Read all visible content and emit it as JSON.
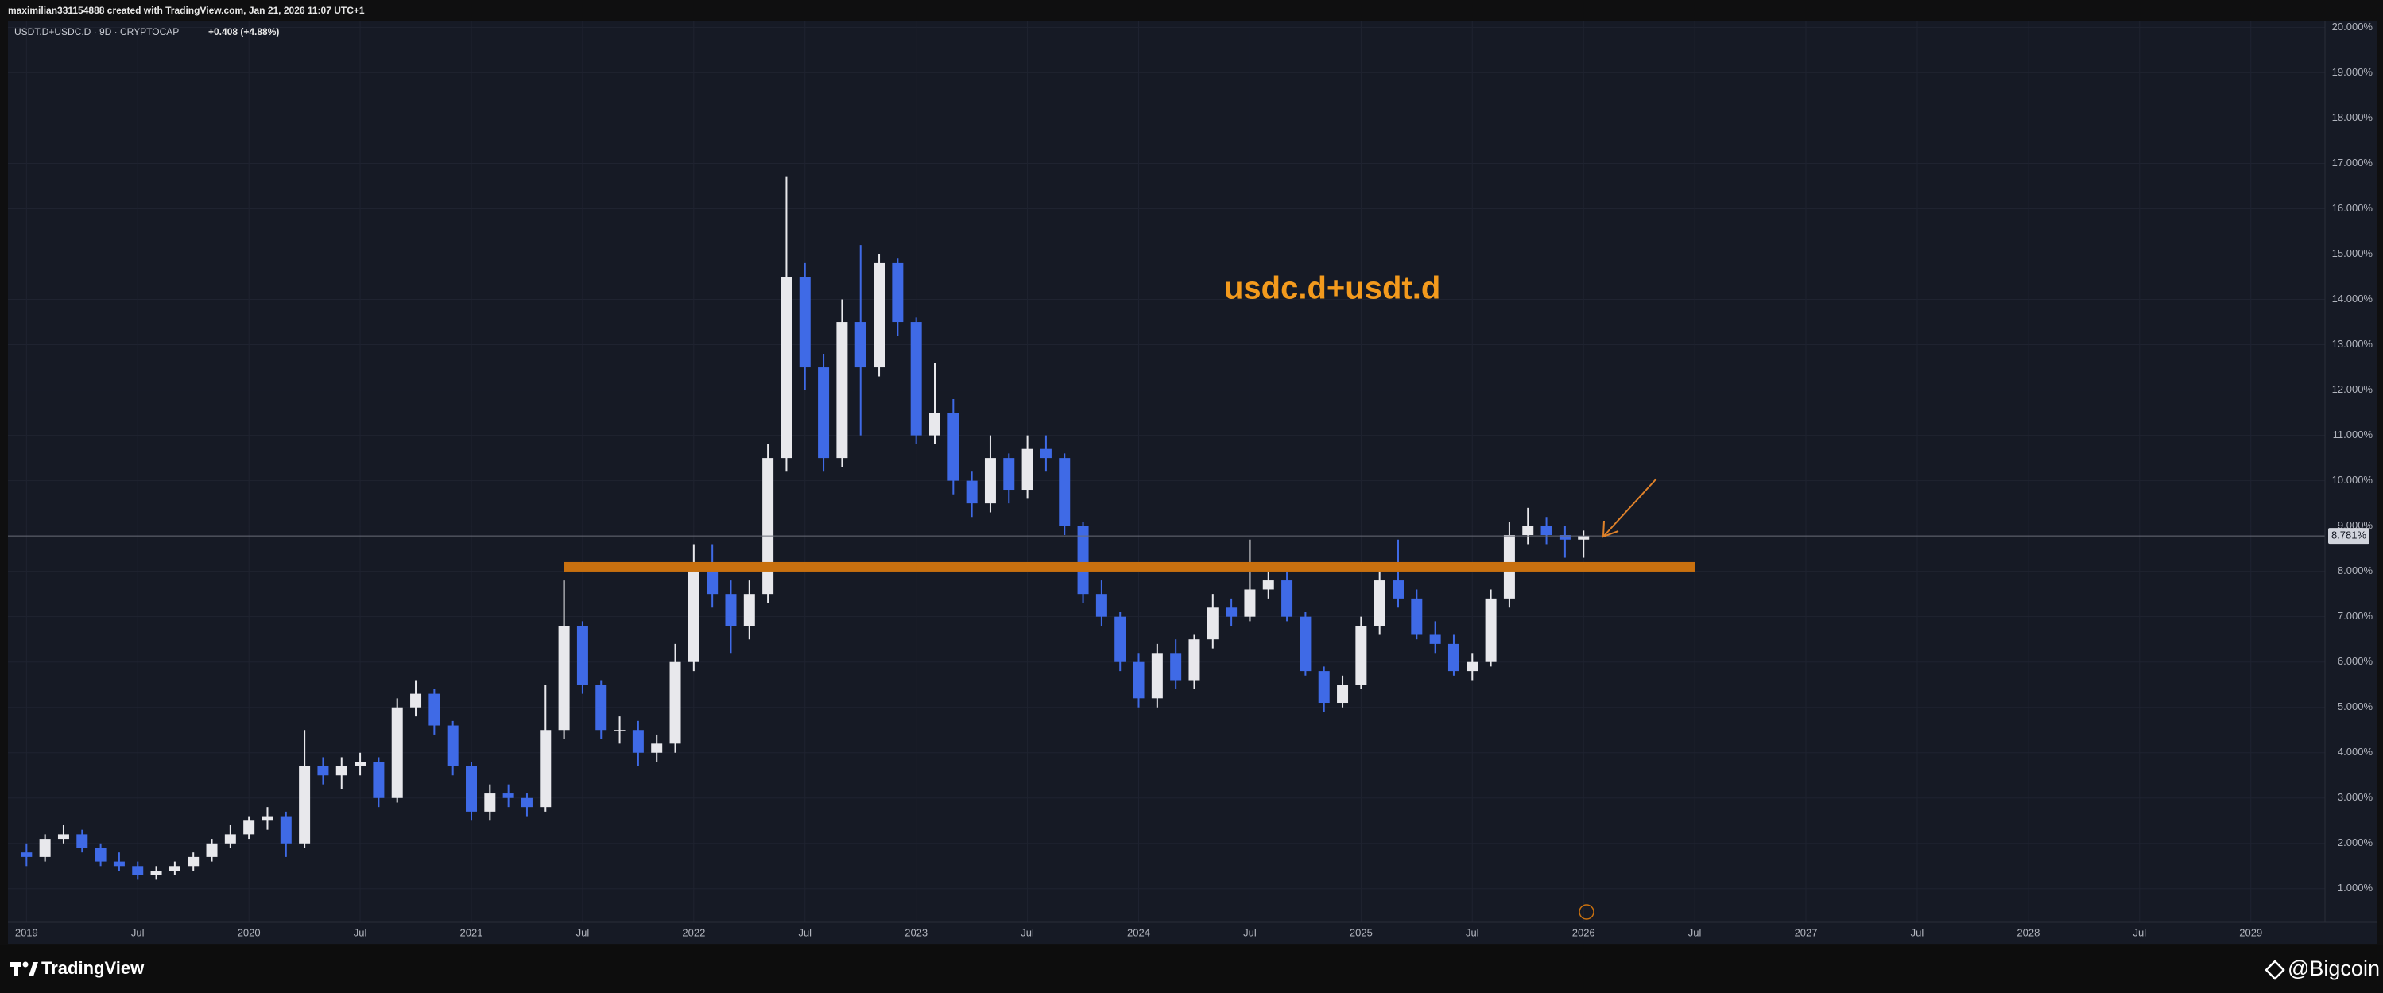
{
  "header": {
    "credit": "maximilian331154888 created with TradingView.com, Jan 21, 2026 11:07 UTC+1",
    "symbol": "USDT.D+USDC.D · 9D · CRYPTOCAP",
    "change": "+0.408 (+4.88%)"
  },
  "chart_data": {
    "type": "candlestick",
    "annotation": "usdc.d+usdt.d",
    "up_color": "#e8e8ec",
    "down_color": "#3f6ae6",
    "x": [
      "2019-01",
      "2019-02",
      "2019-03",
      "2019-04",
      "2019-05",
      "2019-06",
      "2019-07",
      "2019-08",
      "2019-09",
      "2019-10",
      "2019-11",
      "2019-12",
      "2020-01",
      "2020-02",
      "2020-03",
      "2020-04",
      "2020-05",
      "2020-06",
      "2020-07",
      "2020-08",
      "2020-09",
      "2020-10",
      "2020-11",
      "2020-12",
      "2021-01",
      "2021-02",
      "2021-03",
      "2021-04",
      "2021-05",
      "2021-06",
      "2021-07",
      "2021-08",
      "2021-09",
      "2021-10",
      "2021-11",
      "2021-12",
      "2022-01",
      "2022-02",
      "2022-03",
      "2022-04",
      "2022-05",
      "2022-06",
      "2022-07",
      "2022-08",
      "2022-09",
      "2022-10",
      "2022-11",
      "2022-12",
      "2023-01",
      "2023-02",
      "2023-03",
      "2023-04",
      "2023-05",
      "2023-06",
      "2023-07",
      "2023-08",
      "2023-09",
      "2023-10",
      "2023-11",
      "2023-12",
      "2024-01",
      "2024-02",
      "2024-03",
      "2024-04",
      "2024-05",
      "2024-06",
      "2024-07",
      "2024-08",
      "2024-09",
      "2024-10",
      "2024-11",
      "2024-12",
      "2025-01",
      "2025-02",
      "2025-03",
      "2025-04",
      "2025-05",
      "2025-06",
      "2025-07",
      "2025-08",
      "2025-09",
      "2025-10",
      "2025-11",
      "2025-12",
      "2026-01"
    ],
    "open": [
      1.8,
      1.7,
      2.1,
      2.2,
      1.9,
      1.6,
      1.5,
      1.3,
      1.4,
      1.5,
      1.7,
      2.0,
      2.2,
      2.5,
      2.6,
      2.0,
      3.7,
      3.5,
      3.7,
      3.8,
      3.0,
      5.0,
      5.3,
      4.6,
      3.7,
      2.7,
      3.1,
      3.0,
      2.8,
      4.5,
      6.8,
      5.5,
      4.5,
      4.5,
      4.0,
      4.2,
      6.0,
      8.0,
      7.5,
      6.8,
      7.5,
      10.5,
      14.5,
      12.5,
      10.5,
      13.5,
      12.5,
      14.8,
      13.5,
      11.0,
      11.5,
      10.0,
      9.5,
      10.5,
      9.8,
      10.7,
      10.5,
      9.0,
      7.5,
      7.0,
      6.0,
      5.2,
      6.2,
      5.6,
      6.5,
      7.2,
      7.0,
      7.6,
      7.8,
      7.0,
      5.8,
      5.1,
      5.5,
      6.8,
      7.8,
      7.4,
      6.6,
      6.4,
      5.8,
      6.0,
      7.4,
      8.8,
      9.0,
      8.8,
      8.7
    ],
    "high": [
      2.0,
      2.2,
      2.4,
      2.3,
      2.0,
      1.8,
      1.6,
      1.5,
      1.6,
      1.8,
      2.1,
      2.4,
      2.6,
      2.8,
      2.7,
      4.5,
      3.9,
      3.9,
      4.0,
      3.9,
      5.2,
      5.6,
      5.4,
      4.7,
      3.8,
      3.3,
      3.3,
      3.1,
      5.5,
      7.8,
      6.9,
      5.6,
      4.8,
      4.7,
      4.4,
      6.4,
      8.6,
      8.6,
      7.8,
      7.8,
      10.8,
      16.7,
      14.8,
      12.8,
      14.0,
      15.2,
      15.0,
      14.9,
      13.6,
      12.6,
      11.8,
      10.2,
      11.0,
      10.6,
      11.0,
      11.0,
      10.6,
      9.1,
      7.8,
      7.1,
      6.2,
      6.4,
      6.5,
      6.6,
      7.5,
      7.4,
      8.7,
      8.2,
      8.0,
      7.1,
      5.9,
      5.7,
      7.0,
      8.0,
      8.7,
      7.6,
      6.9,
      6.6,
      6.2,
      7.6,
      9.1,
      9.4,
      9.2,
      9.0,
      8.9
    ],
    "low": [
      1.5,
      1.6,
      2.0,
      1.8,
      1.5,
      1.4,
      1.2,
      1.2,
      1.3,
      1.4,
      1.6,
      1.9,
      2.1,
      2.3,
      1.7,
      1.9,
      3.3,
      3.2,
      3.5,
      2.8,
      2.9,
      4.8,
      4.4,
      3.5,
      2.5,
      2.5,
      2.8,
      2.6,
      2.7,
      4.3,
      5.3,
      4.3,
      4.2,
      3.7,
      3.8,
      4.0,
      5.8,
      7.2,
      6.2,
      6.5,
      7.3,
      10.2,
      12.0,
      10.2,
      10.3,
      11.0,
      12.3,
      13.2,
      10.8,
      10.8,
      9.7,
      9.2,
      9.3,
      9.5,
      9.6,
      10.2,
      8.8,
      7.3,
      6.8,
      5.8,
      5.0,
      5.0,
      5.4,
      5.4,
      6.3,
      6.8,
      6.9,
      7.4,
      6.9,
      5.7,
      4.9,
      5.0,
      5.4,
      6.6,
      7.2,
      6.5,
      6.2,
      5.7,
      5.6,
      5.9,
      7.2,
      8.6,
      8.6,
      8.3,
      8.3
    ],
    "close": [
      1.7,
      2.1,
      2.2,
      1.9,
      1.6,
      1.5,
      1.3,
      1.4,
      1.5,
      1.7,
      2.0,
      2.2,
      2.5,
      2.6,
      2.0,
      3.7,
      3.5,
      3.7,
      3.8,
      3.0,
      5.0,
      5.3,
      4.6,
      3.7,
      2.7,
      3.1,
      3.0,
      2.8,
      4.5,
      6.8,
      5.5,
      4.5,
      4.5,
      4.0,
      4.2,
      6.0,
      8.0,
      7.5,
      6.8,
      7.5,
      10.5,
      14.5,
      12.5,
      10.5,
      13.5,
      12.5,
      14.8,
      13.5,
      11.0,
      11.5,
      10.0,
      9.5,
      10.5,
      9.8,
      10.7,
      10.5,
      9.0,
      7.5,
      7.0,
      6.0,
      5.2,
      6.2,
      5.6,
      6.5,
      7.2,
      7.0,
      7.6,
      7.8,
      7.0,
      5.8,
      5.1,
      5.5,
      6.8,
      7.8,
      7.4,
      6.6,
      6.4,
      5.8,
      6.0,
      7.4,
      8.8,
      9.0,
      8.8,
      8.7,
      8.78
    ],
    "last_price": {
      "value": 8.781,
      "label": "8.781%"
    },
    "level": {
      "value": 8.1,
      "x": [
        "2021-06",
        "2026-07"
      ],
      "color": "#c8700f"
    },
    "xlim": [
      "2018-12",
      "2029-05"
    ],
    "ylim": [
      0.26,
      20.13
    ],
    "xticks": [
      {
        "value": "2019-01",
        "label": "2019"
      },
      {
        "value": "2019-07",
        "label": "Jul"
      },
      {
        "value": "2020-01",
        "label": "2020"
      },
      {
        "value": "2020-07",
        "label": "Jul"
      },
      {
        "value": "2021-01",
        "label": "2021"
      },
      {
        "value": "2021-07",
        "label": "Jul"
      },
      {
        "value": "2022-01",
        "label": "2022"
      },
      {
        "value": "2022-07",
        "label": "Jul"
      },
      {
        "value": "2023-01",
        "label": "2023"
      },
      {
        "value": "2023-07",
        "label": "Jul"
      },
      {
        "value": "2024-01",
        "label": "2024"
      },
      {
        "value": "2024-07",
        "label": "Jul"
      },
      {
        "value": "2025-01",
        "label": "2025"
      },
      {
        "value": "2025-07",
        "label": "Jul"
      },
      {
        "value": "2026-01",
        "label": "2026"
      },
      {
        "value": "2026-07",
        "label": "Jul"
      },
      {
        "value": "2027-01",
        "label": "2027"
      },
      {
        "value": "2027-07",
        "label": "Jul"
      },
      {
        "value": "2028-01",
        "label": "2028"
      },
      {
        "value": "2028-07",
        "label": "Jul"
      },
      {
        "value": "2029-01",
        "label": "2029"
      }
    ],
    "yticks": [
      {
        "value": 1,
        "label": "1.000%"
      },
      {
        "value": 2,
        "label": "2.000%"
      },
      {
        "value": 3,
        "label": "3.000%"
      },
      {
        "value": 4,
        "label": "4.000%"
      },
      {
        "value": 5,
        "label": "5.000%"
      },
      {
        "value": 6,
        "label": "6.000%"
      },
      {
        "value": 7,
        "label": "7.000%"
      },
      {
        "value": 8,
        "label": "8.000%"
      },
      {
        "value": 9,
        "label": "9.000%"
      },
      {
        "value": 10,
        "label": "10.000%"
      },
      {
        "value": 11,
        "label": "11.000%"
      },
      {
        "value": 12,
        "label": "12.000%"
      },
      {
        "value": 13,
        "label": "13.000%"
      },
      {
        "value": 14,
        "label": "14.000%"
      },
      {
        "value": 15,
        "label": "15.000%"
      },
      {
        "value": 16,
        "label": "16.000%"
      },
      {
        "value": 17,
        "label": "17.000%"
      },
      {
        "value": 18,
        "label": "18.000%"
      },
      {
        "value": 19,
        "label": "19.000%"
      },
      {
        "value": 20,
        "label": "20.000%"
      }
    ],
    "grid": true
  },
  "footer": {
    "brand": "TradingView",
    "watermark": "@Bigcoin"
  }
}
